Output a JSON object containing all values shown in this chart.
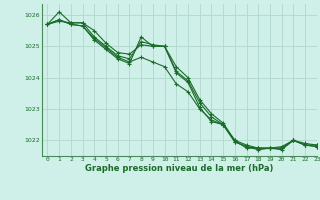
{
  "background_color": "#cff0e8",
  "grid_color": "#b0d8cc",
  "line_color": "#1a6b2a",
  "spine_color": "#4a8a5a",
  "title": "Graphe pression niveau de la mer (hPa)",
  "xlim": [
    -0.5,
    23
  ],
  "ylim": [
    1021.5,
    1026.35
  ],
  "yticks": [
    1022,
    1023,
    1024,
    1025,
    1026
  ],
  "xticks": [
    0,
    1,
    2,
    3,
    4,
    5,
    6,
    7,
    8,
    9,
    10,
    11,
    12,
    13,
    14,
    15,
    16,
    17,
    18,
    19,
    20,
    21,
    22,
    23
  ],
  "series": [
    [
      1025.7,
      1025.8,
      1025.75,
      1025.75,
      1025.5,
      1025.1,
      1024.8,
      1024.75,
      1025.05,
      1025.0,
      1025.0,
      1024.35,
      1024.0,
      1023.3,
      1022.85,
      1022.55,
      1022.0,
      1021.75,
      1021.75,
      1021.75,
      1021.75,
      1022.0,
      1021.85,
      1021.85
    ],
    [
      1025.7,
      1026.1,
      1025.75,
      1025.75,
      1025.3,
      1025.0,
      1024.7,
      1024.6,
      1025.15,
      1025.05,
      1025.0,
      1024.2,
      1023.9,
      1023.2,
      1022.75,
      1022.5,
      1021.95,
      1021.8,
      1021.75,
      1021.75,
      1021.75,
      1022.0,
      1021.9,
      1021.85
    ],
    [
      1025.7,
      1025.85,
      1025.7,
      1025.65,
      1025.25,
      1024.95,
      1024.65,
      1024.5,
      1024.65,
      1024.5,
      1024.35,
      1023.8,
      1023.55,
      1023.0,
      1022.65,
      1022.5,
      1021.95,
      1021.8,
      1021.7,
      1021.75,
      1021.7,
      1022.0,
      1021.85,
      1021.8
    ],
    [
      1025.7,
      1025.85,
      1025.7,
      1025.65,
      1025.2,
      1024.9,
      1024.6,
      1024.45,
      1025.3,
      1025.0,
      1025.0,
      1024.15,
      1023.85,
      1023.05,
      1022.6,
      1022.5,
      1022.0,
      1021.85,
      1021.75,
      1021.75,
      1021.8,
      1022.0,
      1021.85,
      1021.8
    ]
  ]
}
